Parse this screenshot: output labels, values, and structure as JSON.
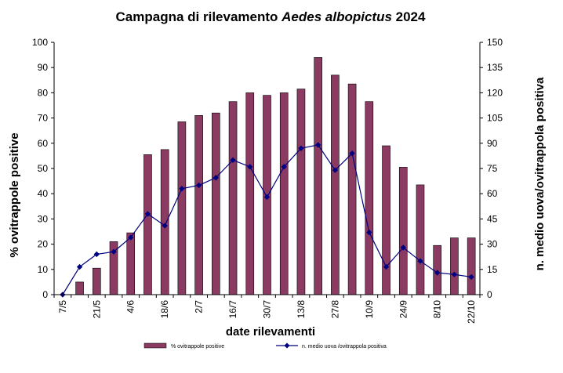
{
  "chart_data": {
    "type": "bar",
    "title_main": "Campagna di rilevamento ",
    "title_italic": "Aedes albopictus",
    "title_tail": " 2024",
    "xlabel": "date rilevamenti",
    "ylabel_left": "% ovitrappole positive",
    "ylabel_right": "n. medio uova/ovitrappola positiva",
    "ylim_left": [
      0,
      100
    ],
    "ylim_right": [
      0,
      150
    ],
    "yticks_left": [
      0,
      10,
      20,
      30,
      40,
      50,
      60,
      70,
      80,
      90,
      100
    ],
    "yticks_right": [
      0,
      15,
      30,
      45,
      60,
      75,
      90,
      105,
      120,
      135,
      150
    ],
    "categories": [
      "7/5",
      "",
      "21/5",
      "",
      "4/6",
      "",
      "18/6",
      "",
      "2/7",
      "",
      "16/7",
      "",
      "30/7",
      "",
      "13/8",
      "",
      "27/8",
      "",
      "10/9",
      "",
      "24/9",
      "",
      "8/10",
      "",
      "22/10"
    ],
    "series": [
      {
        "name": "% ovitrappole positive",
        "type": "bar",
        "axis": "left",
        "color": "#8b3a62",
        "values": [
          0,
          5,
          10.5,
          21,
          24.5,
          55.5,
          57.5,
          68.5,
          71,
          72,
          76.5,
          80,
          79,
          80,
          81.5,
          94,
          87,
          83.5,
          76.5,
          59,
          50.5,
          43.5,
          19.5,
          22.5,
          22.5
        ]
      },
      {
        "name": "n. medio uova /ovitrappola positiva",
        "type": "line",
        "axis": "right",
        "color": "#000080",
        "values": [
          0,
          16.5,
          24,
          25.5,
          34,
          48,
          41,
          63,
          65,
          69.5,
          80,
          76,
          58,
          76,
          87,
          89,
          74,
          84,
          37,
          16.5,
          28,
          20,
          13,
          12,
          10.5
        ]
      }
    ],
    "grid": false,
    "legend_position": "bottom-center"
  }
}
